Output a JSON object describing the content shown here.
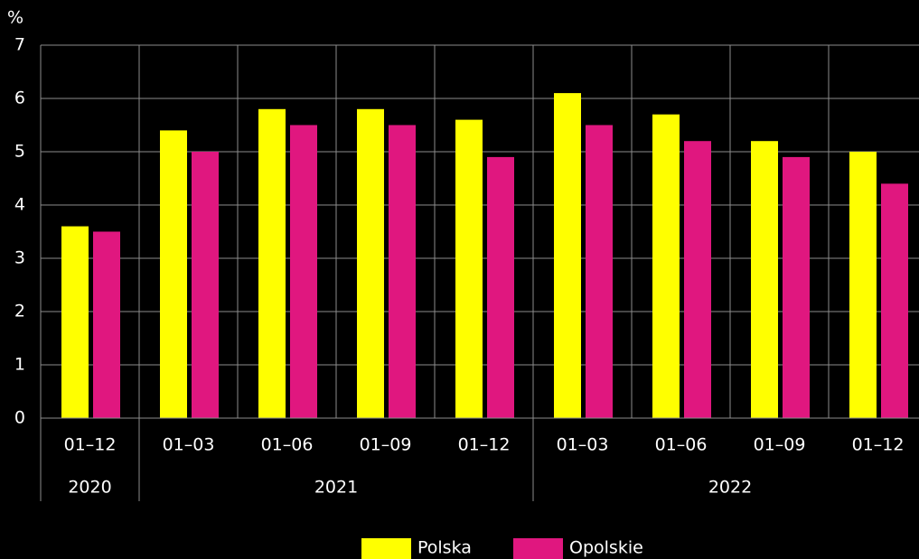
{
  "chart_data": {
    "type": "bar",
    "y_unit": "%",
    "categories": [
      "01–12",
      "01–03",
      "01–06",
      "01–09",
      "01–12",
      "01–03",
      "01–06",
      "01–09",
      "01–12"
    ],
    "groups": [
      {
        "label": "2020",
        "count": 1
      },
      {
        "label": "2021",
        "count": 4
      },
      {
        "label": "2022",
        "count": 4
      }
    ],
    "series": [
      {
        "name": "Polska",
        "color": "#ffff00",
        "values": [
          3.6,
          5.4,
          5.8,
          5.8,
          5.6,
          6.1,
          5.7,
          5.2,
          5.0
        ]
      },
      {
        "name": "Opolskie",
        "color": "#e0177f",
        "values": [
          3.5,
          5.0,
          5.5,
          5.5,
          4.9,
          5.5,
          5.2,
          4.9,
          4.4
        ]
      }
    ],
    "ylim": [
      0,
      7
    ],
    "yticks": [
      0,
      1,
      2,
      3,
      4,
      5,
      6,
      7
    ],
    "grid": true
  }
}
